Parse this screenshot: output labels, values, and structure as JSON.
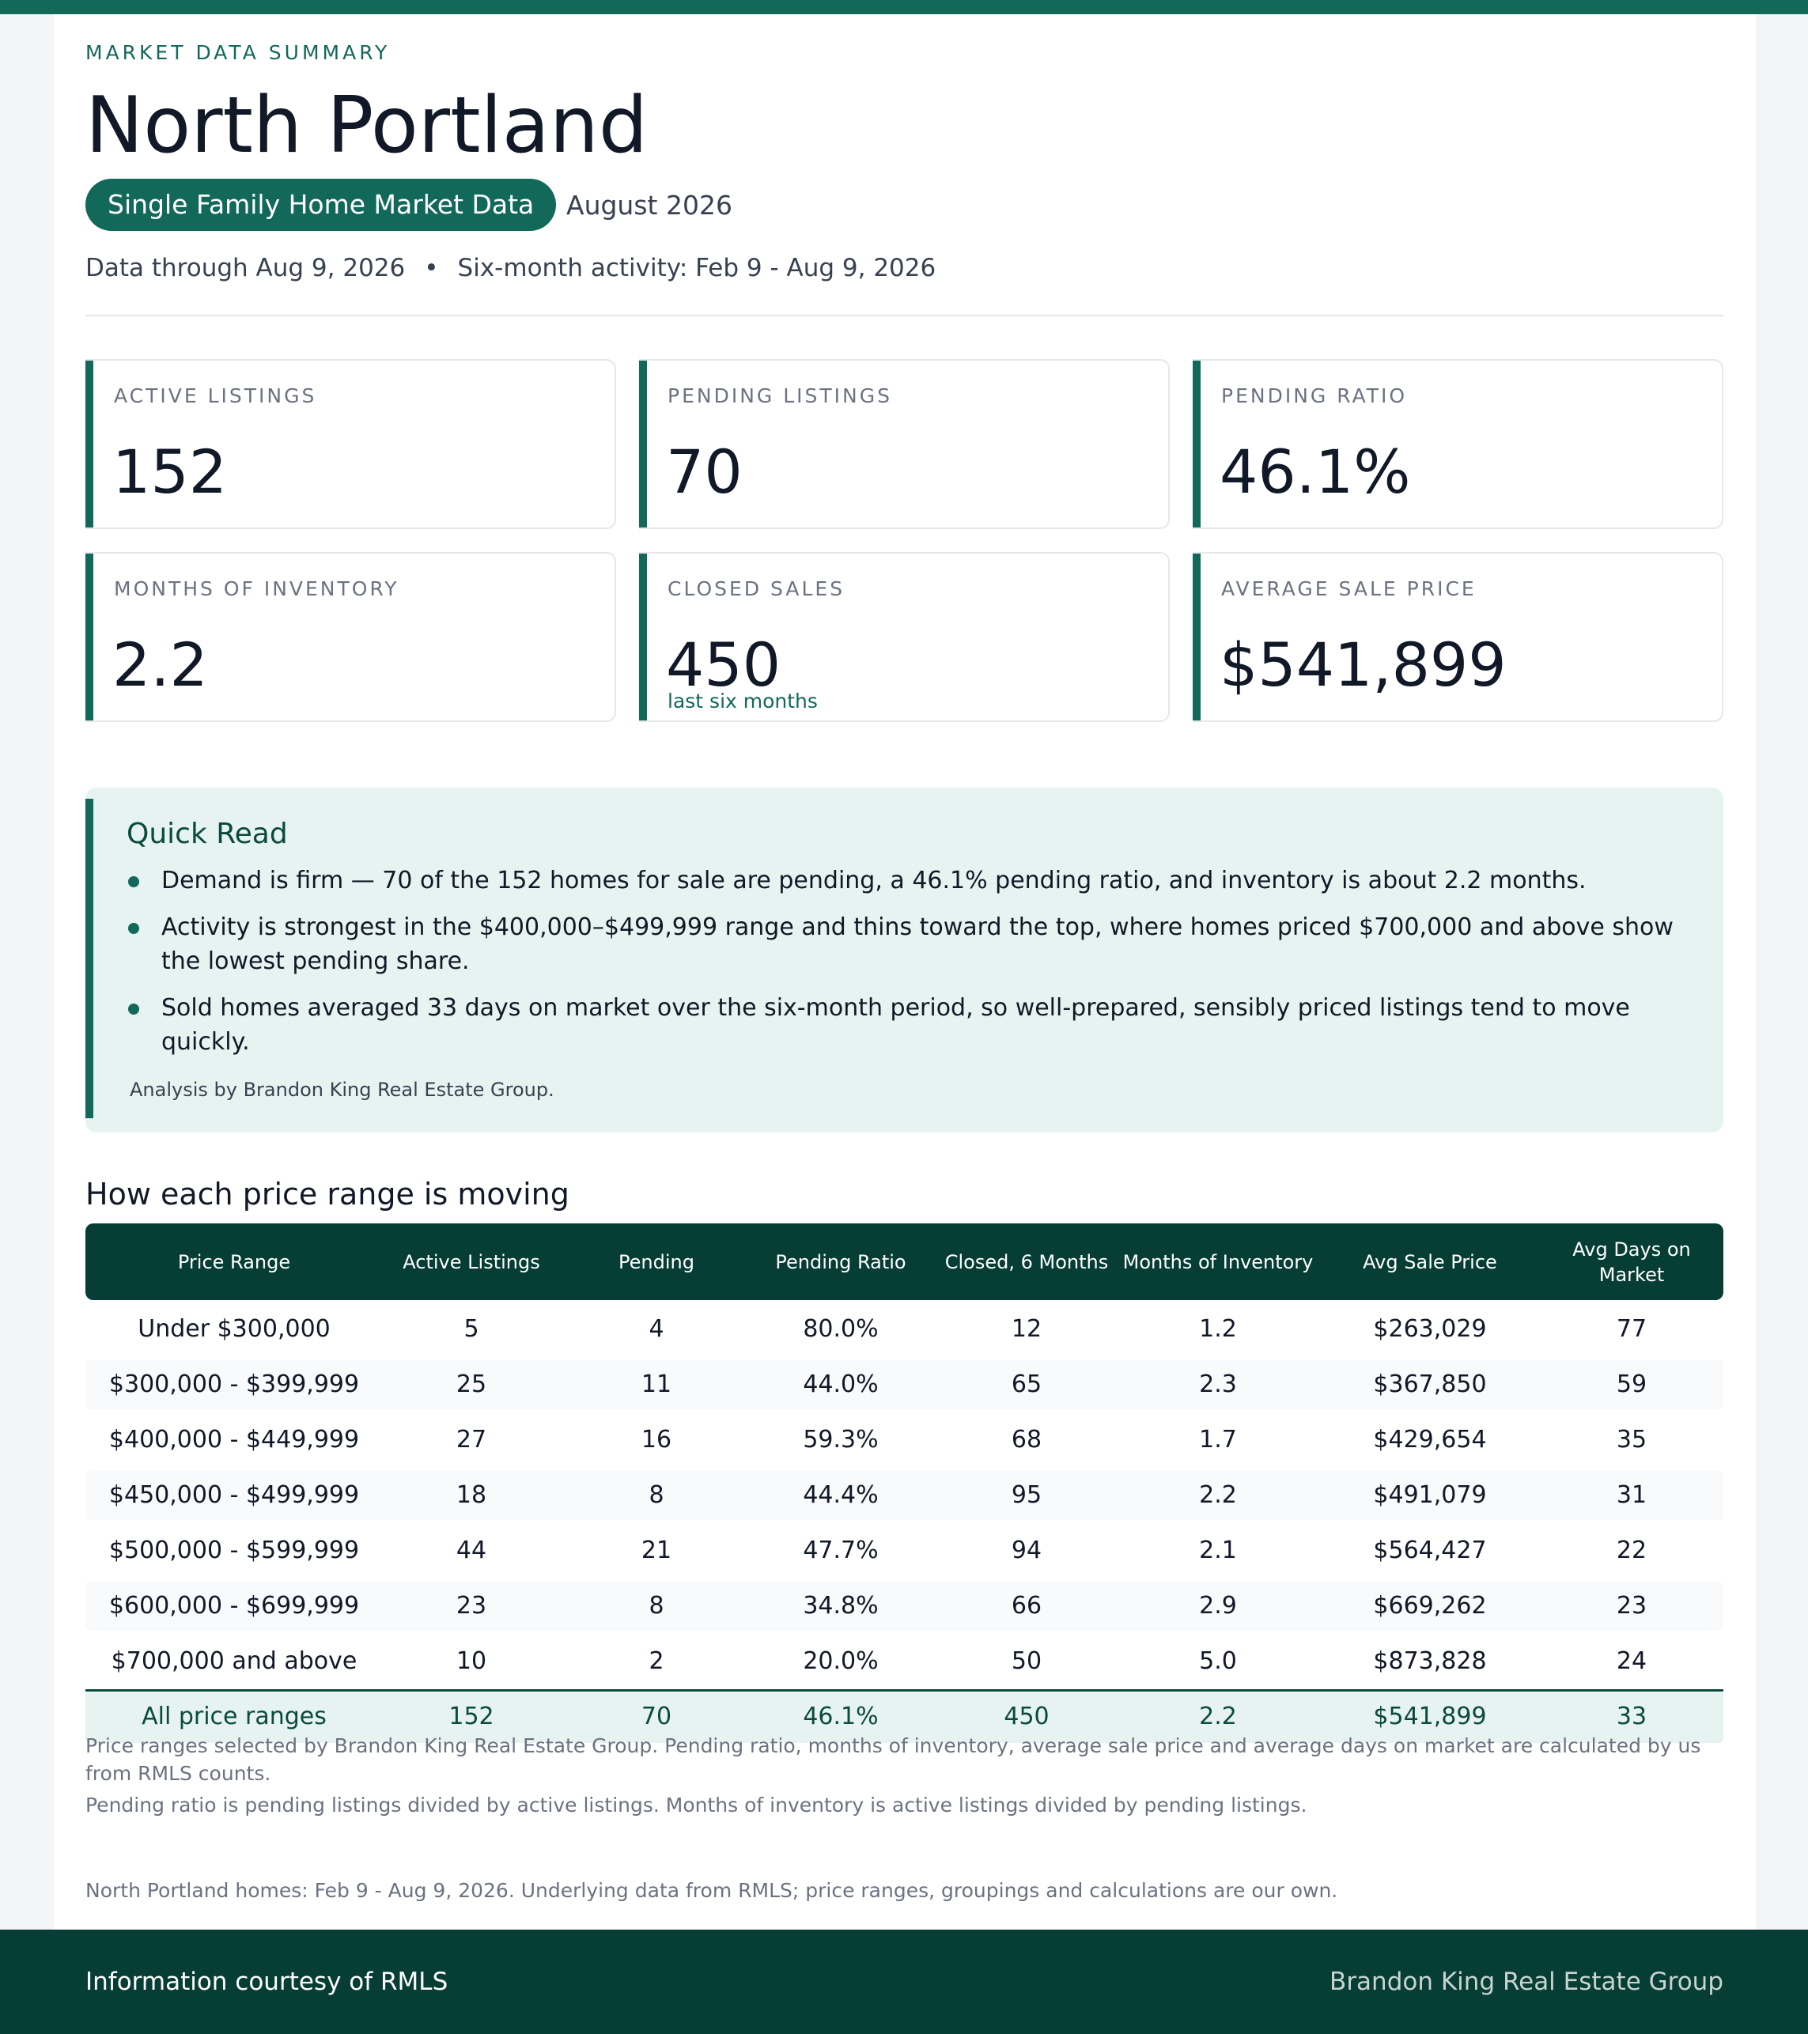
{
  "header": {
    "eyebrow": "MARKET DATA SUMMARY",
    "title": "North Portland",
    "pill": "Single Family Home Market Data",
    "month": "August 2026",
    "data_through": "Data through Aug 9, 2026",
    "separator": "•",
    "activity": "Six-month activity: Feb 9 - Aug 9, 2026"
  },
  "kpis": {
    "active": {
      "label": "ACTIVE LISTINGS",
      "value": "152"
    },
    "pending": {
      "label": "PENDING LISTINGS",
      "value": "70"
    },
    "ratio": {
      "label": "PENDING RATIO",
      "value": "46.1%"
    },
    "inventory": {
      "label": "MONTHS OF INVENTORY",
      "value": "2.2"
    },
    "closed": {
      "label": "CLOSED SALES",
      "value": "450",
      "sub": "last six months"
    },
    "avg_price": {
      "label": "AVERAGE SALE PRICE",
      "value": "$541,899"
    }
  },
  "quick_read": {
    "title": "Quick Read",
    "bullets": [
      "Demand is firm — 70 of the 152 homes for sale are pending, a 46.1% pending ratio, and inventory is about 2.2 months.",
      "Activity is strongest in the $400,000–$499,999 range and thins toward the top, where homes priced $700,000 and above show the lowest pending share.",
      "Sold homes averaged 33 days on market over the six-month period, so well-prepared, sensibly priced listings tend to move quickly."
    ],
    "credit": "Analysis by Brandon King Real Estate Group."
  },
  "table": {
    "title": "How each price range is moving",
    "columns": [
      "Price Range",
      "Active Listings",
      "Pending",
      "Pending Ratio",
      "Closed, 6 Months",
      "Months of Inventory",
      "Avg Sale Price",
      "Avg Days on Market"
    ],
    "rows": [
      [
        "Under $300,000",
        "5",
        "4",
        "80.0%",
        "12",
        "1.2",
        "$263,029",
        "77"
      ],
      [
        "$300,000 - $399,999",
        "25",
        "11",
        "44.0%",
        "65",
        "2.3",
        "$367,850",
        "59"
      ],
      [
        "$400,000 - $449,999",
        "27",
        "16",
        "59.3%",
        "68",
        "1.7",
        "$429,654",
        "35"
      ],
      [
        "$450,000 - $499,999",
        "18",
        "8",
        "44.4%",
        "95",
        "2.2",
        "$491,079",
        "31"
      ],
      [
        "$500,000 - $599,999",
        "44",
        "21",
        "47.7%",
        "94",
        "2.1",
        "$564,427",
        "22"
      ],
      [
        "$600,000 - $699,999",
        "23",
        "8",
        "34.8%",
        "66",
        "2.9",
        "$669,262",
        "23"
      ],
      [
        "$700,000 and above",
        "10",
        "2",
        "20.0%",
        "50",
        "5.0",
        "$873,828",
        "24"
      ]
    ],
    "total": [
      "All price ranges",
      "152",
      "70",
      "46.1%",
      "450",
      "2.2",
      "$541,899",
      "33"
    ]
  },
  "notes": {
    "note1": "Price ranges selected by Brandon King Real Estate Group. Pending ratio, months of inventory, average sale price and average days on market are calculated by us from RMLS counts.",
    "note2": "Pending ratio is pending listings divided by active listings. Months of inventory is active listings divided by pending listings.",
    "source": "North Portland homes: Feb 9 - Aug 9, 2026. Underlying data from RMLS; price ranges, groupings and calculations are our own."
  },
  "footer": {
    "left": "Information courtesy of RMLS",
    "right": "Brandon King Real Estate Group"
  }
}
